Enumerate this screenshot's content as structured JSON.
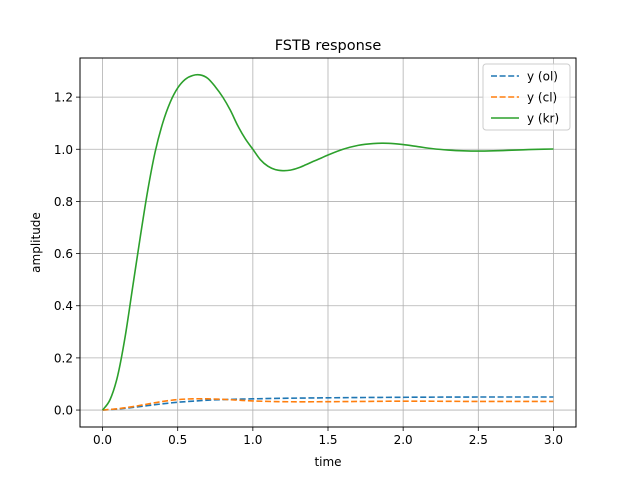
{
  "chart_data": {
    "type": "line",
    "title": "FSTB response",
    "xlabel": "time",
    "ylabel": "amplitude",
    "xlim": [
      -0.15,
      3.15
    ],
    "ylim": [
      -0.065,
      1.35
    ],
    "grid": true,
    "legend_position": "top-right",
    "x_ticks": [
      0.0,
      0.5,
      1.0,
      1.5,
      2.0,
      2.5,
      3.0
    ],
    "x_tick_labels": [
      "0.0",
      "0.5",
      "1.0",
      "1.5",
      "2.0",
      "2.5",
      "3.0"
    ],
    "y_ticks": [
      0.0,
      0.2,
      0.4,
      0.6,
      0.8,
      1.0,
      1.2
    ],
    "y_tick_labels": [
      "0.0",
      "0.2",
      "0.4",
      "0.6",
      "0.8",
      "1.0",
      "1.2"
    ],
    "series": [
      {
        "name": "y (ol)",
        "color": "#1f77b4",
        "dashed": true,
        "x": [
          0.0,
          0.1,
          0.2,
          0.3,
          0.4,
          0.5,
          0.6,
          0.7,
          0.8,
          1.0,
          1.2,
          1.5,
          2.0,
          2.5,
          3.0
        ],
        "y": [
          0.0,
          0.004,
          0.01,
          0.017,
          0.024,
          0.03,
          0.034,
          0.038,
          0.04,
          0.043,
          0.045,
          0.047,
          0.049,
          0.05,
          0.05
        ]
      },
      {
        "name": "y (cl)",
        "color": "#ff7f0e",
        "dashed": true,
        "x": [
          0.0,
          0.1,
          0.2,
          0.3,
          0.4,
          0.5,
          0.6,
          0.7,
          0.8,
          0.9,
          1.0,
          1.2,
          1.5,
          2.0,
          2.5,
          3.0
        ],
        "y": [
          0.0,
          0.005,
          0.013,
          0.023,
          0.033,
          0.04,
          0.043,
          0.043,
          0.041,
          0.038,
          0.035,
          0.032,
          0.032,
          0.034,
          0.033,
          0.033
        ]
      },
      {
        "name": "y (kr)",
        "color": "#2ca02c",
        "dashed": false,
        "x": [
          0.0,
          0.05,
          0.1,
          0.15,
          0.2,
          0.25,
          0.3,
          0.35,
          0.4,
          0.45,
          0.5,
          0.55,
          0.6,
          0.65,
          0.7,
          0.75,
          0.8,
          0.85,
          0.9,
          0.95,
          1.0,
          1.05,
          1.1,
          1.15,
          1.2,
          1.25,
          1.3,
          1.35,
          1.4,
          1.45,
          1.5,
          1.6,
          1.7,
          1.8,
          1.9,
          2.0,
          2.1,
          2.2,
          2.3,
          2.4,
          2.5,
          2.6,
          2.7,
          2.8,
          2.9,
          3.0
        ],
        "y": [
          0.0,
          0.04,
          0.13,
          0.28,
          0.47,
          0.66,
          0.84,
          0.99,
          1.1,
          1.18,
          1.235,
          1.268,
          1.283,
          1.285,
          1.272,
          1.24,
          1.2,
          1.15,
          1.09,
          1.04,
          1.0,
          0.96,
          0.935,
          0.922,
          0.918,
          0.92,
          0.928,
          0.94,
          0.953,
          0.965,
          0.978,
          1.0,
          1.015,
          1.022,
          1.023,
          1.018,
          1.01,
          1.002,
          0.997,
          0.994,
          0.993,
          0.994,
          0.996,
          0.998,
          1.0,
          1.001
        ]
      }
    ]
  }
}
